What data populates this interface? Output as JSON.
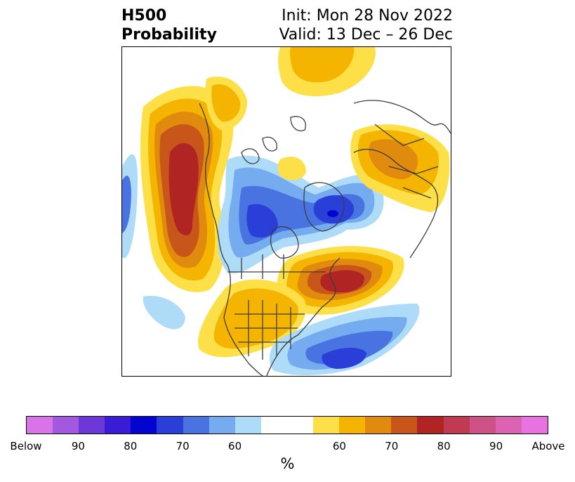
{
  "header": {
    "variable": "H500",
    "product": "Probability",
    "init": "Init: Mon 28 Nov 2022",
    "valid": "Valid: 13 Dec – 26 Dec"
  },
  "colorbar": {
    "colors": [
      "#d873e8",
      "#a259e0",
      "#6c38d8",
      "#3a1cd6",
      "#0404d0",
      "#2a3ed8",
      "#4a73e2",
      "#74acef",
      "#aedcf8",
      "#ffffff",
      "#ffffff",
      "#fde047",
      "#f4b400",
      "#e08a0e",
      "#c8561a",
      "#b02424",
      "#c13a54",
      "#cd5286",
      "#dc63b2",
      "#e873e0"
    ],
    "tick_labels": [
      "Below",
      "90",
      "80",
      "70",
      "60",
      "60",
      "70",
      "80",
      "90",
      "Above"
    ],
    "unit": "%"
  },
  "palette": {
    "blue_light": "#aedcf8",
    "blue_1": "#74acef",
    "blue_2": "#4a73e2",
    "blue_3": "#2a3ed8",
    "blue_4": "#0404d0",
    "yellow": "#fde047",
    "gold": "#f4b400",
    "orange": "#e08a0e",
    "burnt": "#c8561a",
    "red": "#b02424",
    "coast": "#3c3c3c"
  }
}
